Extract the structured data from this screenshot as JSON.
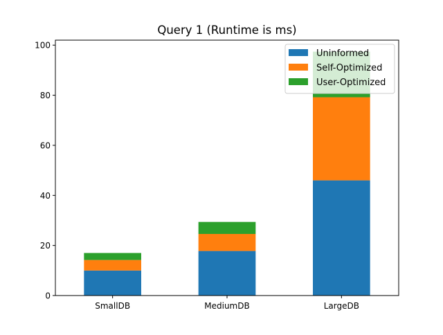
{
  "chart_data": {
    "type": "bar",
    "stacked": true,
    "title": "Query 1 (Runtime is ms)",
    "xlabel": "",
    "ylabel": "",
    "categories": [
      "SmallDB",
      "MediumDB",
      "LargeDB"
    ],
    "series": [
      {
        "name": "Uninformed",
        "color": "#1f77b4",
        "values": [
          10.0,
          17.8,
          46.0
        ]
      },
      {
        "name": "Self-Optimized",
        "color": "#ff7f0e",
        "values": [
          4.2,
          6.8,
          33.2
        ]
      },
      {
        "name": "User-Optimized",
        "color": "#2ca02c",
        "values": [
          2.8,
          4.8,
          18.2
        ]
      }
    ],
    "ylim": [
      0,
      102
    ],
    "yticks": [
      "0",
      "20",
      "40",
      "60",
      "80",
      "100"
    ],
    "grid": false,
    "legend_position": "top-right"
  }
}
